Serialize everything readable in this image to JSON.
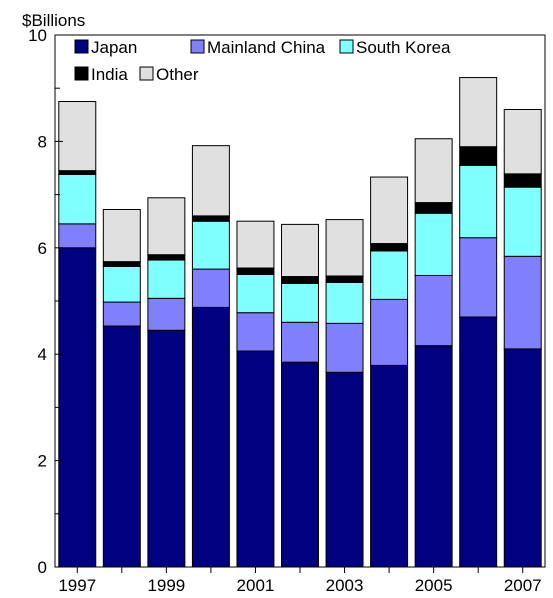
{
  "chart_data": {
    "type": "bar",
    "stacked": true,
    "title": "",
    "ylabel": "$Billions",
    "xlabel": "",
    "ylim": [
      0,
      10
    ],
    "yticks": [
      0,
      2,
      4,
      6,
      8,
      10
    ],
    "grid": false,
    "legend_position": "top-left",
    "categories": [
      "1997",
      "1998",
      "1999",
      "2000",
      "2001",
      "2002",
      "2003",
      "2004",
      "2005",
      "2006",
      "2007"
    ],
    "x_tick_labels": [
      "1997",
      "1999",
      "2001",
      "2003",
      "2005",
      "2007"
    ],
    "series": [
      {
        "name": "Japan",
        "color": "#000080",
        "values": [
          6.0,
          4.53,
          4.45,
          4.88,
          4.06,
          3.85,
          3.66,
          3.79,
          4.16,
          4.7,
          4.1
        ]
      },
      {
        "name": "Mainland China",
        "color": "#8080ff",
        "values": [
          0.45,
          0.45,
          0.6,
          0.72,
          0.72,
          0.75,
          0.92,
          1.24,
          1.32,
          1.49,
          1.74
        ]
      },
      {
        "name": "South Korea",
        "color": "#80ffff",
        "values": [
          0.93,
          0.67,
          0.72,
          0.9,
          0.72,
          0.73,
          0.77,
          0.91,
          1.17,
          1.36,
          1.3
        ]
      },
      {
        "name": "India",
        "color": "#000000",
        "values": [
          0.07,
          0.09,
          0.1,
          0.1,
          0.12,
          0.13,
          0.12,
          0.14,
          0.2,
          0.35,
          0.25
        ]
      },
      {
        "name": "Other",
        "color": "#e0e0e0",
        "values": [
          1.3,
          0.98,
          1.07,
          1.32,
          0.88,
          0.98,
          1.06,
          1.25,
          1.2,
          1.3,
          1.21
        ]
      }
    ]
  }
}
